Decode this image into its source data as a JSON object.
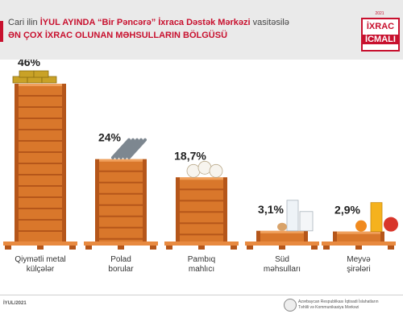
{
  "header": {
    "line1_part1": "Cari ilin ",
    "line1_highlight": "İYUL AYINDA “Bir Pəncərə” İxraca Dəstək Mərkəzi",
    "line1_part2": " vasitəsilə",
    "line2": "ƏN ÇOX İXRAC OLUNAN MƏHSULLARIN BÖLGÜSÜ"
  },
  "badge": {
    "year": "2021",
    "line1": "İXRAC",
    "line2": "İCMALI"
  },
  "chart_data": {
    "type": "bar",
    "categories": [
      "Qiymətli metal külçələr",
      "Polad borular",
      "Pambıq mahlıcı",
      "Süd məhsulları",
      "Meyvə şirələri"
    ],
    "category_lines": [
      [
        "Qiymətli metal",
        "külçələr"
      ],
      [
        "Polad",
        "borular"
      ],
      [
        "Pambıq",
        "mahlıcı"
      ],
      [
        "Süd",
        "məhsulları"
      ],
      [
        "Meyvə",
        "şirələri"
      ]
    ],
    "values": [
      46,
      24,
      18.7,
      3.1,
      2.9
    ],
    "value_labels": [
      "46%",
      "24%",
      "18,7%",
      "3,1%",
      "2,9%"
    ],
    "unit": "%",
    "ylim": [
      0,
      50
    ],
    "grid": false,
    "colors": {
      "crate": "#d9772b",
      "crate_dark": "#b5561a",
      "crate_light": "#f0a05c",
      "pallet": "#e88a40"
    }
  },
  "footer": {
    "date": "İYUL/2021",
    "org_line1": "Azərbaycan Respublikası İqtisadi İslahatların",
    "org_line2": "Təhlili və Kommunikasiya Mərkəzi"
  }
}
